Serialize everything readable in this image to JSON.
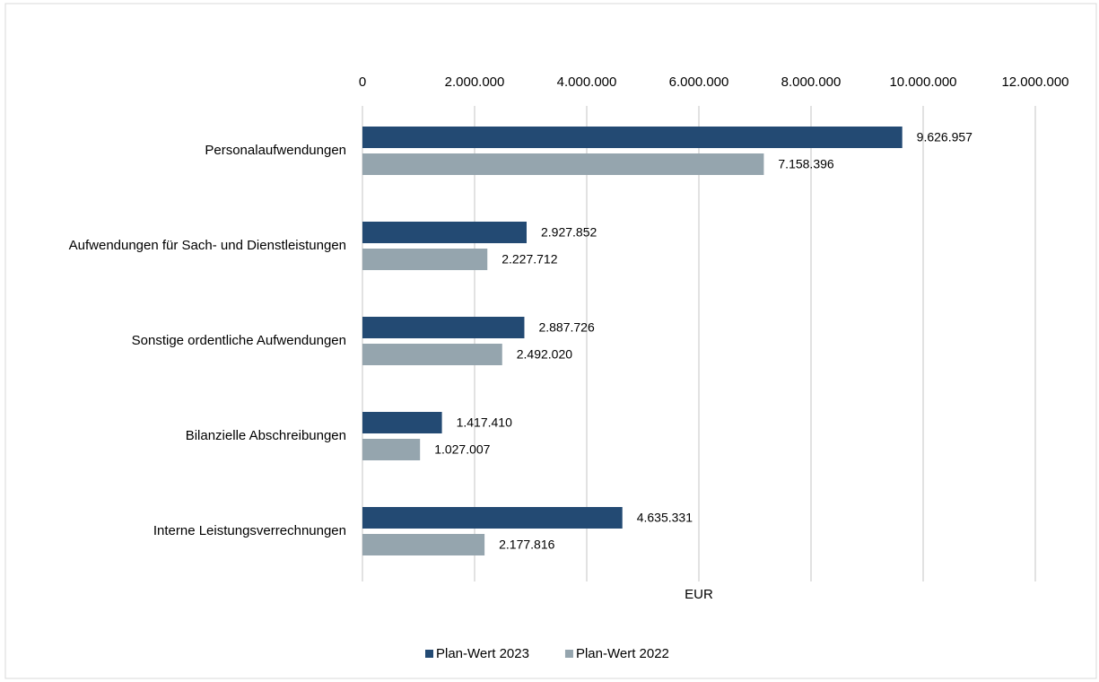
{
  "chart_data": {
    "type": "bar",
    "orientation": "horizontal",
    "x_axis_label": "EUR",
    "categories": [
      "Personalaufwendungen",
      "Aufwendungen für Sach- und Dienstleistungen",
      "Sonstige ordentliche Aufwendungen",
      "Bilanzielle Abschreibungen",
      "Interne Leistungsverrechnungen"
    ],
    "series": [
      {
        "name": "Plan-Wert 2023",
        "color": "#234a73",
        "values": [
          9626957,
          2927852,
          2887726,
          1417410,
          4635331
        ],
        "value_labels": [
          "9.626.957",
          "2.927.852",
          "2.887.726",
          "1.417.410",
          "4.635.331"
        ]
      },
      {
        "name": "Plan-Wert 2022",
        "color": "#95a5ae",
        "values": [
          7158396,
          2227712,
          2492020,
          1027007,
          2177816
        ],
        "value_labels": [
          "7.158.396",
          "2.227.712",
          "2.492.020",
          "1.027.007",
          "2.177.816"
        ]
      }
    ],
    "xlim": [
      0,
      12000000
    ],
    "xticks": [
      0,
      {
        "value": 2000000,
        "label": "2.000.000"
      },
      {
        "value": 4000000,
        "label": "4.000.000"
      },
      {
        "value": 6000000,
        "label": "6.000.000"
      },
      {
        "value": 8000000,
        "label": "8.000.000"
      },
      {
        "value": 10000000,
        "label": "10.000.000"
      },
      {
        "value": 12000000,
        "label": "12.000.000"
      }
    ],
    "grid": true,
    "legend": "bottom"
  }
}
